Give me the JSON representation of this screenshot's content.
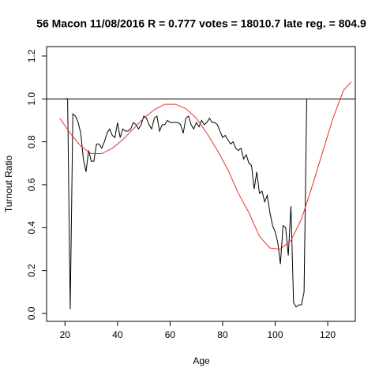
{
  "chart_data": {
    "type": "line",
    "title": "56 Macon 11/08/2016 R = 0.777 votes = 18010.7 late reg. = 804.9",
    "xlabel": "Age",
    "ylabel": "Turnout Ratio",
    "xlim": [
      13,
      130.5
    ],
    "ylim": [
      -0.037,
      1.244
    ],
    "xticks": [
      20,
      40,
      60,
      80,
      100,
      120
    ],
    "yticks": [
      {
        "value": 0,
        "label": "0.0"
      },
      0.2,
      0.4,
      0.6,
      0.8,
      {
        "value": 1,
        "label": "1.0"
      },
      1.2
    ],
    "hline": 1,
    "series": [
      {
        "color": "#000000",
        "x": [
          20,
          21,
          22,
          23,
          24,
          25,
          26,
          27,
          28,
          29,
          30,
          31,
          32,
          33,
          34,
          35,
          36,
          37,
          38,
          39,
          40,
          41,
          42,
          43,
          44,
          45,
          46,
          47,
          48,
          49,
          50,
          51,
          52,
          53,
          54,
          55,
          56,
          57,
          58,
          59,
          60,
          61,
          62,
          63,
          64,
          65,
          66,
          67,
          68,
          69,
          70,
          71,
          72,
          73,
          74,
          75,
          76,
          77,
          78,
          79,
          80,
          81,
          82,
          83,
          84,
          85,
          86,
          87,
          88,
          89,
          90,
          91,
          92,
          93,
          94,
          95,
          96,
          97,
          98,
          99,
          100,
          101,
          102,
          103,
          104,
          105,
          106,
          107,
          108,
          109,
          110,
          111,
          112
        ],
        "values": [
          1.0,
          1.0,
          0.02,
          0.93,
          0.92,
          0.89,
          0.84,
          0.72,
          0.66,
          0.76,
          0.71,
          0.71,
          0.79,
          0.79,
          0.77,
          0.8,
          0.84,
          0.86,
          0.83,
          0.82,
          0.89,
          0.82,
          0.86,
          0.85,
          0.85,
          0.86,
          0.89,
          0.88,
          0.86,
          0.88,
          0.92,
          0.91,
          0.88,
          0.86,
          0.91,
          0.92,
          0.85,
          0.88,
          0.88,
          0.9,
          0.89,
          0.89,
          0.89,
          0.89,
          0.88,
          0.84,
          0.91,
          0.92,
          0.88,
          0.86,
          0.89,
          0.87,
          0.9,
          0.88,
          0.89,
          0.91,
          0.89,
          0.89,
          0.88,
          0.85,
          0.82,
          0.83,
          0.81,
          0.79,
          0.8,
          0.77,
          0.76,
          0.77,
          0.72,
          0.74,
          0.7,
          0.69,
          0.58,
          0.66,
          0.56,
          0.57,
          0.52,
          0.55,
          0.47,
          0.41,
          0.38,
          0.33,
          0.23,
          0.41,
          0.4,
          0.27,
          0.5,
          0.05,
          0.03,
          0.04,
          0.04,
          0.1,
          1.0
        ]
      },
      {
        "color": "#e8302a",
        "x": [
          18,
          22,
          26,
          30,
          34,
          38,
          42,
          46,
          50,
          54,
          58,
          62,
          66,
          70,
          74,
          78,
          82,
          86,
          90,
          94,
          98,
          102,
          106,
          110,
          114,
          118,
          122,
          126,
          129
        ],
        "values": [
          0.91,
          0.84,
          0.78,
          0.745,
          0.745,
          0.77,
          0.81,
          0.86,
          0.91,
          0.95,
          0.975,
          0.975,
          0.955,
          0.91,
          0.84,
          0.76,
          0.67,
          0.56,
          0.47,
          0.36,
          0.305,
          0.3,
          0.34,
          0.44,
          0.59,
          0.75,
          0.91,
          1.04,
          1.08
        ]
      }
    ]
  }
}
